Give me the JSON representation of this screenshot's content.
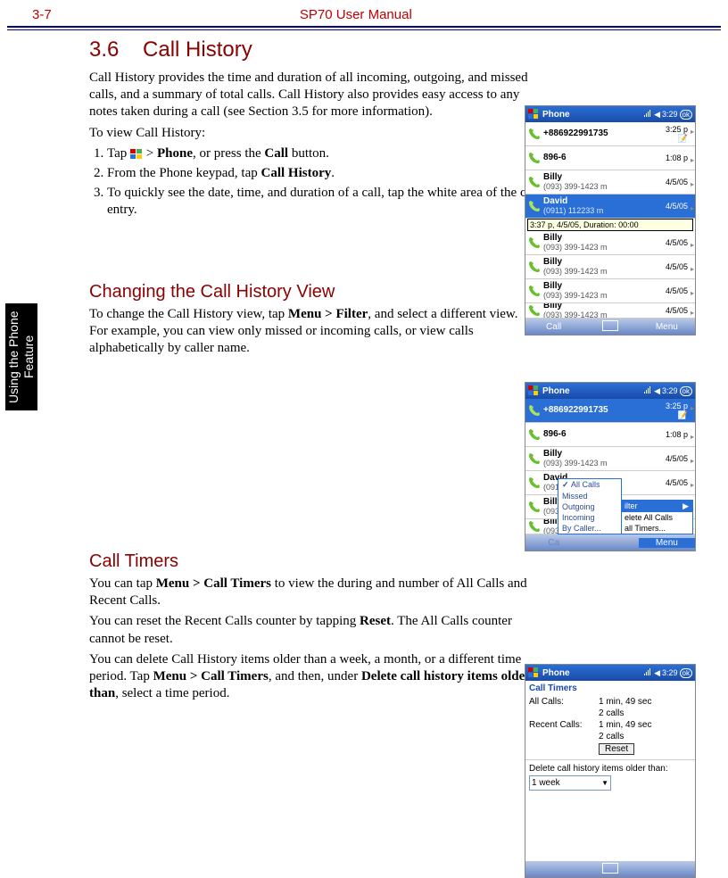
{
  "header": {
    "left": "3-7",
    "center": "SP70 User Manual"
  },
  "sidetab": "Using the Phone\nFeature",
  "section": {
    "number": "3.6",
    "title": "Call History",
    "intro": "Call History provides the time and duration of all incoming, outgoing, and missed calls, and a summary of total calls. Call History also provides easy access to any notes taken during a call (see Section 3.5 for more information).",
    "to_view": "To view Call History:",
    "steps": {
      "s1a": "Tap ",
      "s1b": " > ",
      "s1c": "Phone",
      "s1d": ", or press the ",
      "s1e": "Call",
      "s1f": " button.",
      "s2a": "From the Phone keypad, tap ",
      "s2b": "Call History",
      "s2c": ".",
      "s3": "To quickly see the date, time, and duration of a call, tap the white area of the call's entry."
    }
  },
  "sub1": {
    "title": "Changing the Call History View",
    "p1a": "To change the Call History view, tap ",
    "p1b": "Menu > Filter",
    "p1c": ", and select a different view. For example, you can view only missed or incoming calls, or view calls alphabetically by caller name."
  },
  "sub2": {
    "title": "Call Timers",
    "p1a": "You can tap ",
    "p1b": "Menu > Call Timers",
    "p1c": " to view the during and number of All Calls and Recent Calls.",
    "p2a": "You can reset the Recent Calls counter by tapping ",
    "p2b": "Reset",
    "p2c": ". The All Calls counter cannot be reset.",
    "p3a": "You can delete Call History items older than a week, a month, or a different time period. Tap ",
    "p3b": "Menu > Call Timers",
    "p3c": ", and then, under ",
    "p3d": "Delete call history items older than",
    "p3e": ", select a time period."
  },
  "device_common": {
    "title": "Phone",
    "time": "3:29",
    "ok": "ok",
    "footer_left": "Call",
    "footer_right": "Menu"
  },
  "shot1": {
    "tooltip": "3:37 p, 4/5/05, Duration: 00:00",
    "rows": [
      {
        "name": "+886922991735",
        "sub": "",
        "right": "3:25 p",
        "type": "out",
        "note": true
      },
      {
        "name": "896-6",
        "sub": "",
        "right": "1:08 p",
        "type": "out"
      },
      {
        "name": "Billy",
        "sub": "(093) 399-1423 m",
        "right": "4/5/05",
        "type": "out"
      },
      {
        "name": "David",
        "sub": "(0911) 112233 m",
        "right": "4/5/05",
        "type": "out",
        "selected": true
      },
      {
        "name": "Billy",
        "sub": "(093) 399-1423 m",
        "right": "4/5/05",
        "type": "out"
      },
      {
        "name": "Billy",
        "sub": "(093) 399-1423 m",
        "right": "4/5/05",
        "type": "out"
      },
      {
        "name": "Billy",
        "sub": "(093) 399-1423 m",
        "right": "4/5/05",
        "type": "out"
      },
      {
        "name": "Billy",
        "sub": "(093) 399-1423 m",
        "right": "4/5/05",
        "type": "out"
      }
    ]
  },
  "shot2": {
    "rows": [
      {
        "name": "+886922991735",
        "sub": "",
        "right": "3:25 p",
        "type": "out",
        "selected": true,
        "note": true
      },
      {
        "name": "896-6",
        "sub": "",
        "right": "1:08 p",
        "type": "out"
      },
      {
        "name": "Billy",
        "sub": "(093) 399-1423 m",
        "right": "4/5/05",
        "type": "out"
      },
      {
        "name": "David",
        "sub": "(0911) 112233 m",
        "right": "4/5/05",
        "type": "out"
      },
      {
        "name": "Billy",
        "sub": "(093) 399-1423 m",
        "right": "4/5/05",
        "type": "out"
      },
      {
        "name": "Billy",
        "sub": "(093) 399-1423 m",
        "right": "4/5/05",
        "type": "out"
      }
    ],
    "filter_menu": [
      "All Calls",
      "Missed",
      "Outgoing",
      "Incoming",
      "By Caller..."
    ],
    "side_menu_top": "ilter",
    "side_menu": [
      "elete All Calls",
      "all Timers..."
    ]
  },
  "shot3": {
    "subtitle": "Call Timers",
    "all_label": "All Calls:",
    "all_v1": "1 min, 49 sec",
    "all_v2": "2 calls",
    "recent_label": "Recent Calls:",
    "recent_v1": "1 min, 49 sec",
    "recent_v2": "2 calls",
    "reset": "Reset",
    "delete_label": "Delete call history items older than:",
    "select_value": "1 week"
  }
}
